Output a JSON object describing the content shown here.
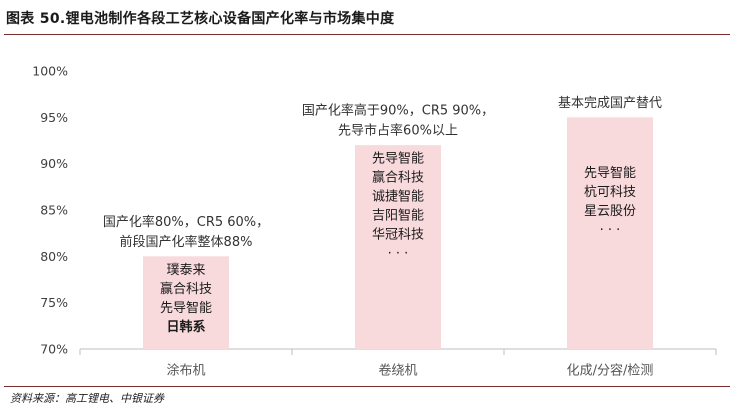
{
  "title": "图表 50.锂电池制作各段工艺核心设备国产化率与市场集中度",
  "source": "资料来源：高工锂电、中银证券",
  "chart_data": {
    "type": "bar",
    "ylim": [
      70,
      100
    ],
    "y_tick_labels": [
      "70%",
      "75%",
      "80%",
      "85%",
      "90%",
      "95%",
      "100%"
    ],
    "grid": false,
    "bar_color": "#f8d9dc",
    "categories": [
      "涂布机",
      "卷绕机",
      "化成/分容/检测"
    ],
    "values": [
      80,
      92,
      95
    ],
    "annotations": [
      [
        "国产化率80%，CR5  60%，",
        "前段国产化率整体88%"
      ],
      [
        "国产化率高于90%，CR5  90%，",
        "先导市占率60%以上"
      ],
      [
        "基本完成国产替代"
      ]
    ],
    "bar_labels": [
      [
        "璞泰来",
        "赢合科技",
        "先导智能",
        "日韩系"
      ],
      [
        "先导智能",
        "赢合科技",
        "诚捷智能",
        "吉阳智能",
        "华冠科技",
        "· · ·"
      ],
      [
        "先导智能",
        "杭可科技",
        "星云股份",
        "· · ·"
      ]
    ]
  }
}
